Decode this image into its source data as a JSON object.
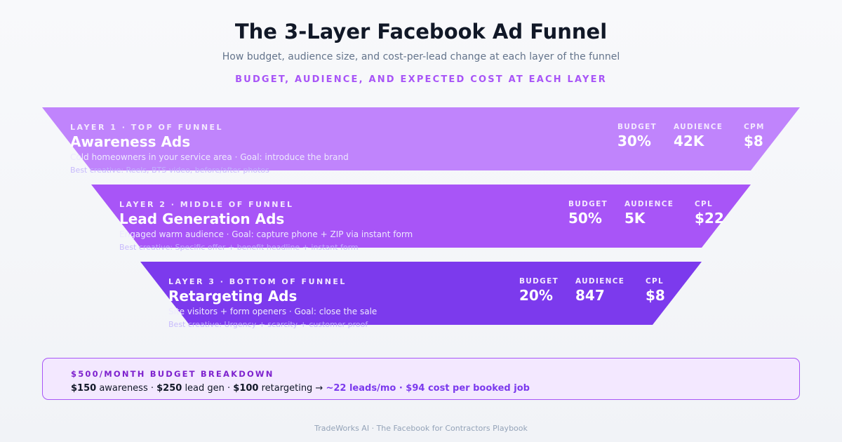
{
  "header": {
    "title": "The 3-Layer Facebook Ad Funnel",
    "subtitle": "How budget, audience size, and cost-per-lead change at each layer of the funnel",
    "section_label": "BUDGET, AUDIENCE, AND EXPECTED COST AT EACH LAYER"
  },
  "colors": {
    "layer1": "#c084fc",
    "layer2": "#a855f7",
    "layer3": "#7c3aed",
    "accent": "#7c3aed",
    "box_bg": "#f3e8ff",
    "box_border": "#a855f7"
  },
  "layers": [
    {
      "kicker": "LAYER 1 · TOP OF FUNNEL",
      "name": "Awareness Ads",
      "description": "Cold homeowners in your service area · Goal: introduce the brand",
      "creative": "Best creative: Reels, BTS video, before/after photos",
      "metrics": [
        {
          "label": "BUDGET",
          "value": "30%"
        },
        {
          "label": "AUDIENCE",
          "value": "42K"
        },
        {
          "label": "CPM",
          "value": "$8"
        }
      ]
    },
    {
      "kicker": "LAYER 2 · MIDDLE OF FUNNEL",
      "name": "Lead Generation Ads",
      "description": "Engaged warm audience · Goal: capture phone + ZIP via instant form",
      "creative": "Best creative: Specific offer + benefit headline + instant form",
      "metrics": [
        {
          "label": "BUDGET",
          "value": "50%"
        },
        {
          "label": "AUDIENCE",
          "value": "5K"
        },
        {
          "label": "CPL",
          "value": "$22"
        }
      ]
    },
    {
      "kicker": "LAYER 3 · BOTTOM OF FUNNEL",
      "name": "Retargeting Ads",
      "description": "Site visitors + form openers · Goal: close the sale",
      "creative": "Best creative: Urgency + scarcity + customer proof",
      "metrics": [
        {
          "label": "BUDGET",
          "value": "20%"
        },
        {
          "label": "AUDIENCE",
          "value": "847"
        },
        {
          "label": "CPL",
          "value": "$8"
        }
      ]
    }
  ],
  "budget": {
    "title": "$500/MONTH BUDGET BREAKDOWN",
    "awareness_amount": "$150",
    "awareness_label": " awareness · ",
    "leadgen_amount": "$250",
    "leadgen_label": " lead gen · ",
    "retargeting_amount": "$100",
    "retargeting_label": " retargeting → ",
    "result": "~22 leads/mo · $94 cost per booked job"
  },
  "footer": "TradeWorks AI · The Facebook for Contractors Playbook"
}
